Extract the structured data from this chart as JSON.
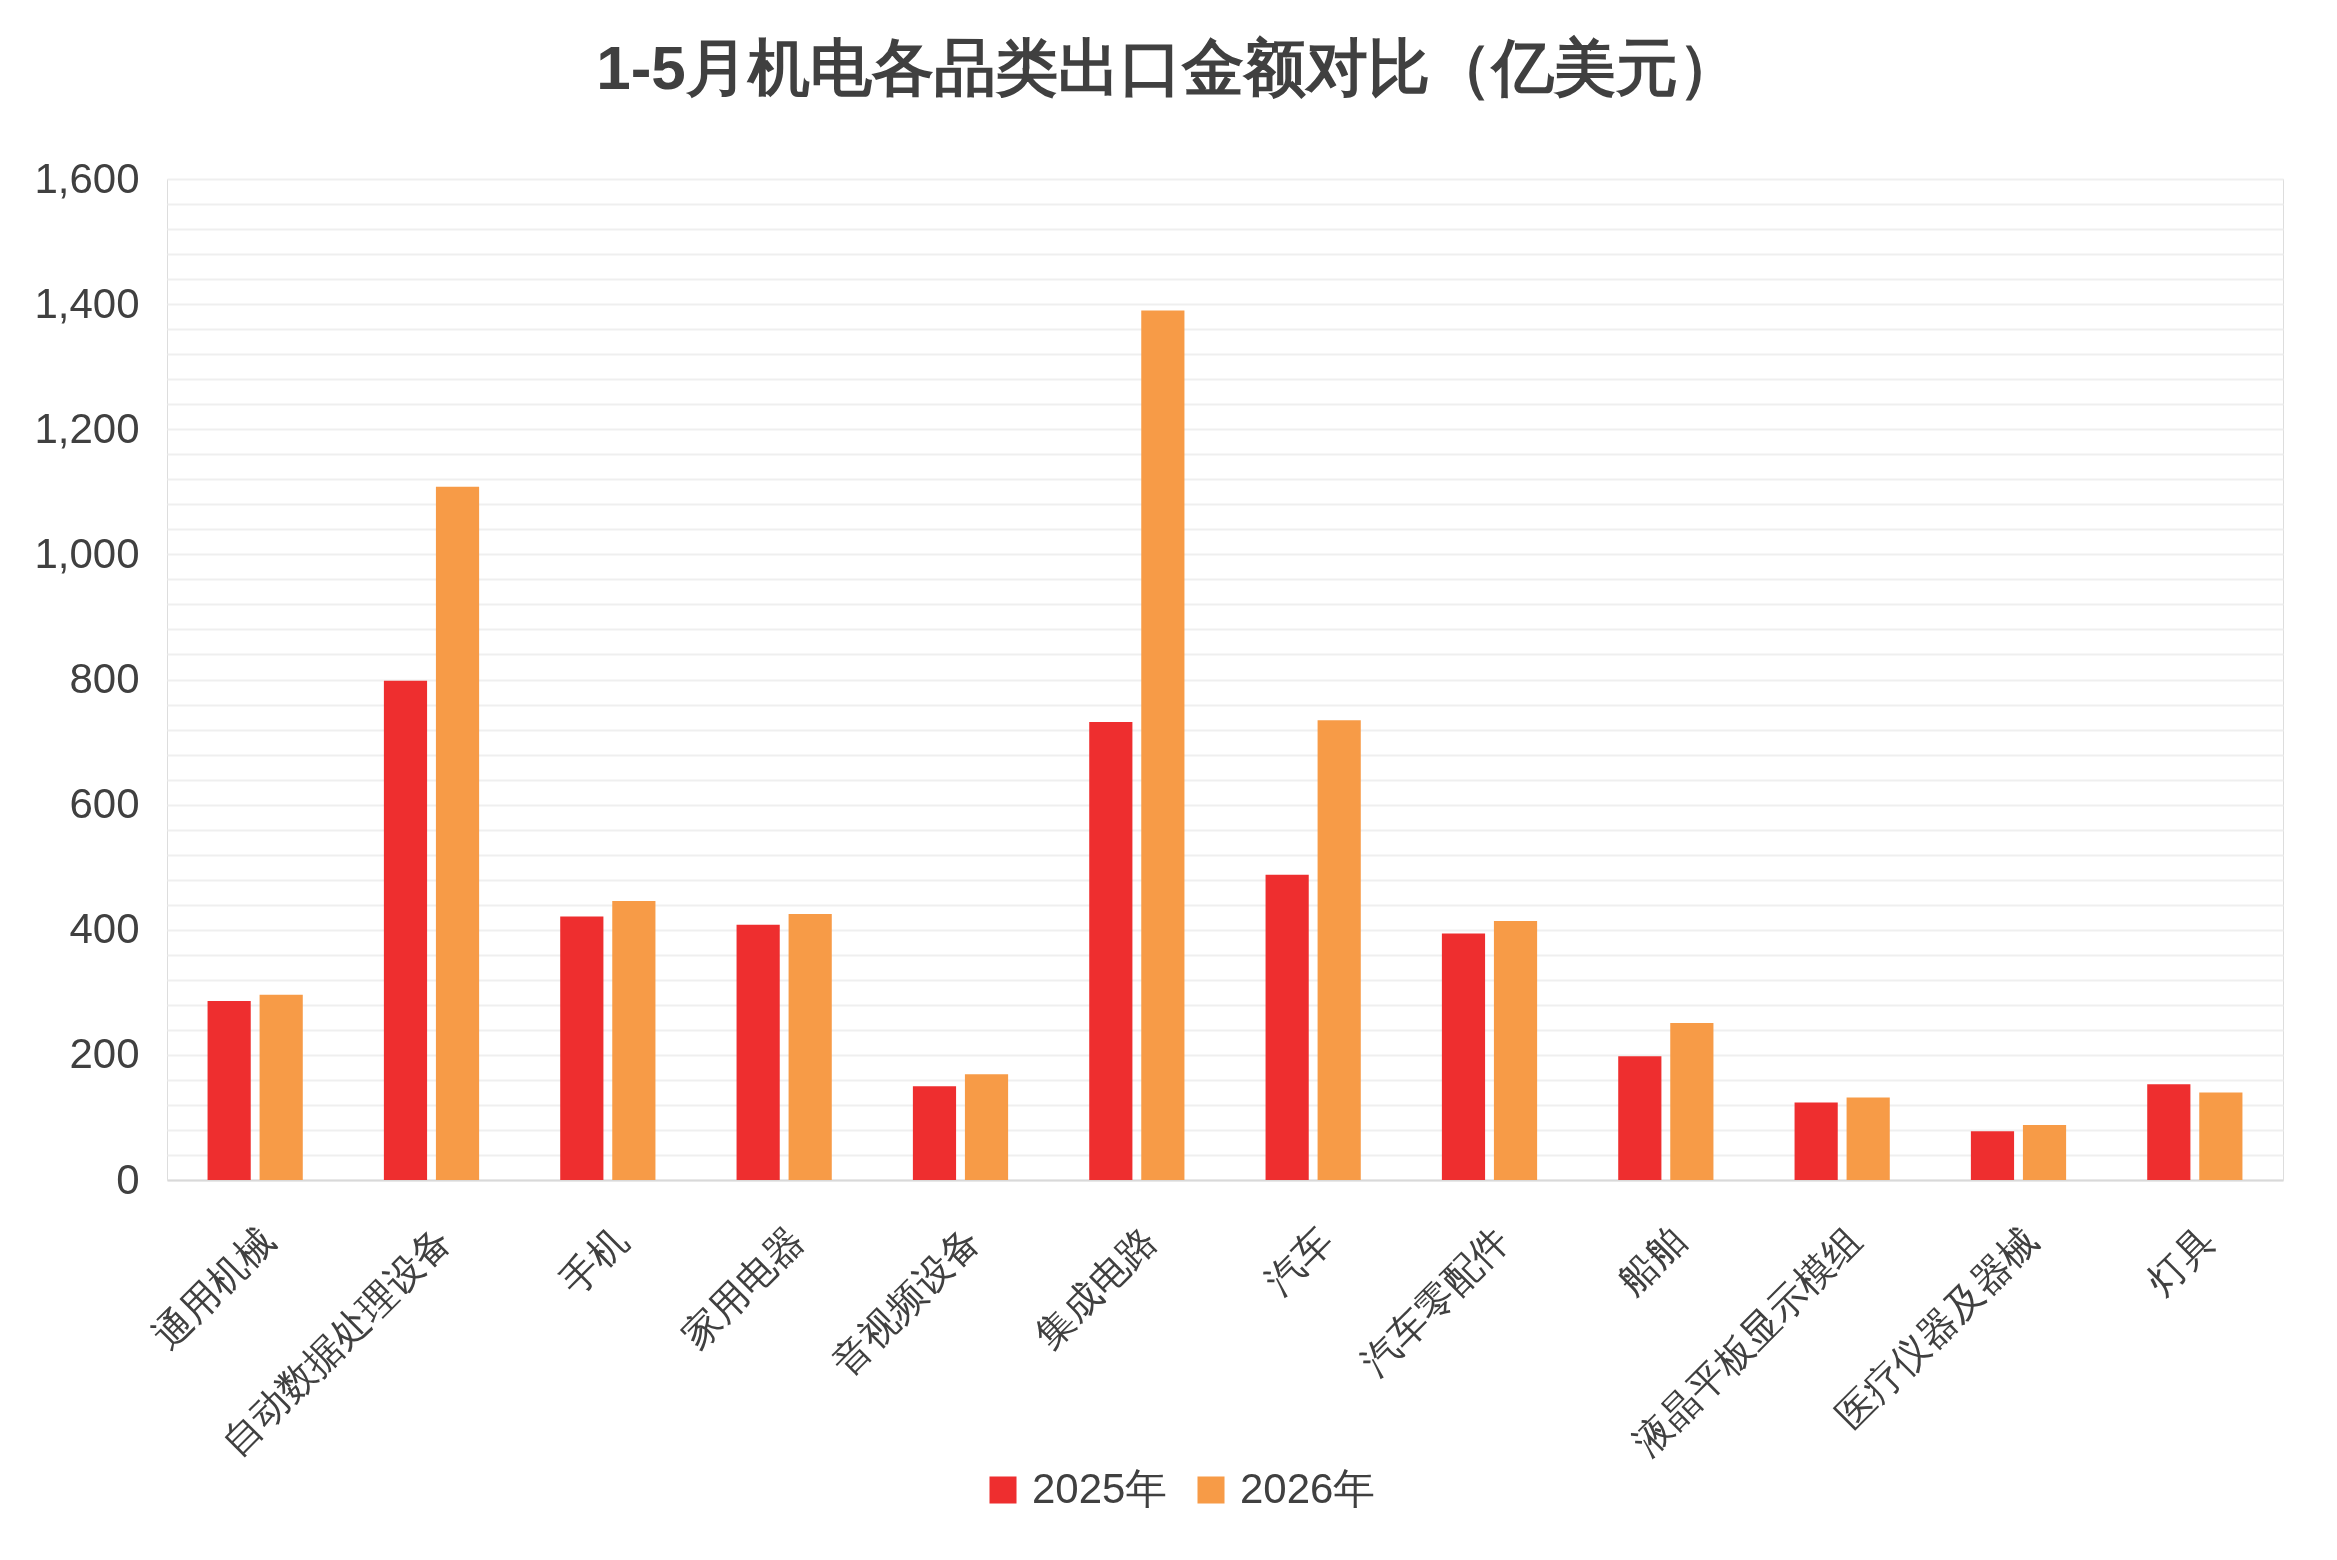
{
  "chart_data": {
    "type": "bar",
    "title": "1-5月机电各品类出口金额对比（亿美元）",
    "categories": [
      "通用机械",
      "自动数据处理设备",
      "手机",
      "家用电器",
      "音视频设备",
      "集成电路",
      "汽车",
      "汽车零配件",
      "船舶",
      "液晶平板显示模组",
      "医疗仪器及器械",
      "灯具"
    ],
    "series": [
      {
        "name": "2025年",
        "color": "#ee2e2f",
        "values": [
          286,
          798,
          421,
          408,
          150,
          732,
          488,
          394,
          198,
          124,
          78,
          153
        ]
      },
      {
        "name": "2026年",
        "color": "#f79b47",
        "values": [
          296,
          1108,
          446,
          425,
          169,
          1390,
          735,
          414,
          251,
          132,
          88,
          140
        ]
      }
    ],
    "ylim": [
      0,
      1600
    ],
    "yticks": [
      0,
      {
        "value": 40,
        "label": null
      },
      {
        "value": 80,
        "label": null
      },
      {
        "value": 120,
        "label": null
      },
      {
        "value": 160,
        "label": null
      },
      200,
      {
        "value": 240,
        "label": null
      },
      {
        "value": 280,
        "label": null
      },
      {
        "value": 320,
        "label": null
      },
      {
        "value": 360,
        "label": null
      },
      400,
      {
        "value": 440,
        "label": null
      },
      {
        "value": 480,
        "label": null
      },
      {
        "value": 520,
        "label": null
      },
      {
        "value": 560,
        "label": null
      },
      600,
      {
        "value": 640,
        "label": null
      },
      {
        "value": 680,
        "label": null
      },
      {
        "value": 720,
        "label": null
      },
      {
        "value": 760,
        "label": null
      },
      800,
      {
        "value": 840,
        "label": null
      },
      {
        "value": 880,
        "label": null
      },
      {
        "value": 920,
        "label": null
      },
      {
        "value": 960,
        "label": null
      },
      {
        "value": 1000,
        "label": "1,000"
      },
      {
        "value": 1040,
        "label": null
      },
      {
        "value": 1080,
        "label": null
      },
      {
        "value": 1120,
        "label": null
      },
      {
        "value": 1160,
        "label": null
      },
      {
        "value": 1200,
        "label": "1,200"
      },
      {
        "value": 1240,
        "label": null
      },
      {
        "value": 1280,
        "label": null
      },
      {
        "value": 1320,
        "label": null
      },
      {
        "value": 1360,
        "label": null
      },
      {
        "value": 1400,
        "label": "1,400"
      },
      {
        "value": 1440,
        "label": null
      },
      {
        "value": 1480,
        "label": null
      },
      {
        "value": 1520,
        "label": null
      },
      {
        "value": 1560,
        "label": null
      },
      {
        "value": 1600,
        "label": "1,600"
      }
    ],
    "grid": "y",
    "legend": "bottom"
  }
}
